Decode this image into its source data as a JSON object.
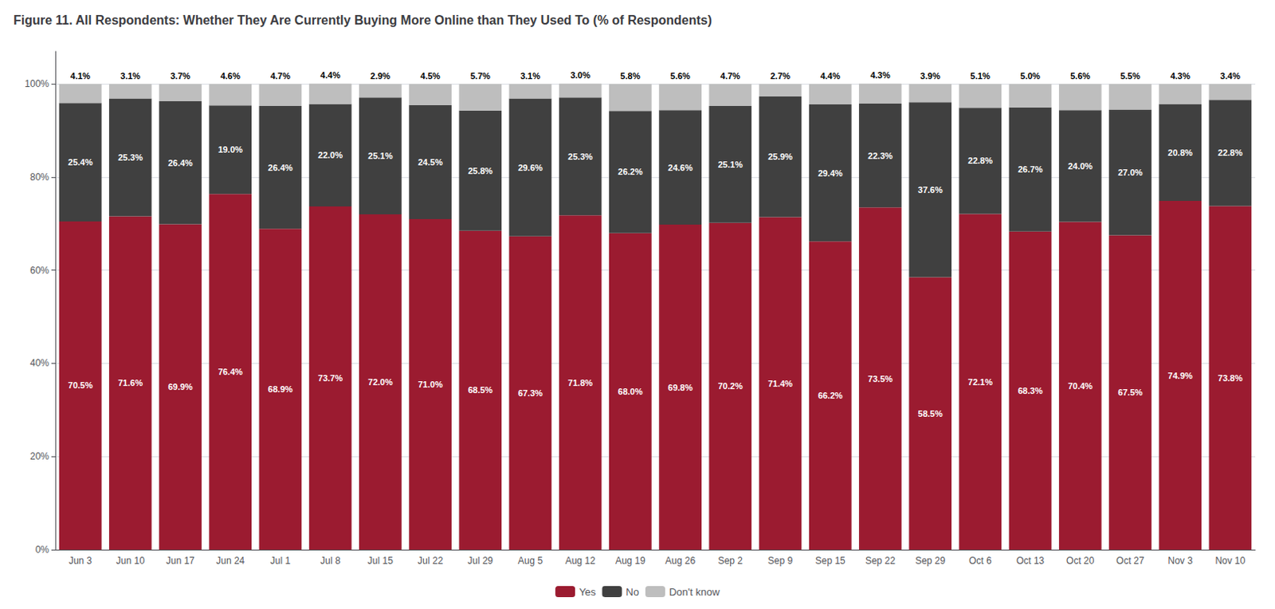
{
  "chart_data": {
    "type": "bar",
    "title": "Figure 11. All Respondents: Whether They Are Currently Buying More Online than They Used To (% of Respondents)",
    "categories": [
      "Jun 3",
      "Jun 10",
      "Jun 17",
      "Jun 24",
      "Jul 1",
      "Jul 8",
      "Jul 15",
      "Jul 22",
      "Jul 29",
      "Aug 5",
      "Aug 12",
      "Aug 19",
      "Aug 26",
      "Sep 2",
      "Sep 9",
      "Sep 15",
      "Sep 22",
      "Sep 29",
      "Oct 6",
      "Oct 13",
      "Oct 20",
      "Oct 27",
      "Nov 3",
      "Nov 10"
    ],
    "series": [
      {
        "name": "Yes",
        "color": "#9B1B30",
        "values": [
          70.5,
          71.6,
          69.9,
          76.4,
          68.9,
          73.7,
          72.0,
          71.0,
          68.5,
          67.3,
          71.8,
          68.0,
          69.8,
          70.2,
          71.4,
          66.2,
          73.5,
          58.5,
          72.1,
          68.3,
          70.4,
          67.5,
          74.9,
          73.8
        ],
        "value_labels": [
          "70.5%",
          "71.6%",
          "69.9%",
          "76.4%",
          "68.9%",
          "73.7%",
          "72.0%",
          "71.0%",
          "68.5%",
          "67.3%",
          "71.8%",
          "68.0%",
          "69.8%",
          "70.2%",
          "71.4%",
          "66.2%",
          "73.5%",
          "58.5%",
          "72.1%",
          "68.3%",
          "70.4%",
          "67.5%",
          "74.9%",
          "73.8%"
        ]
      },
      {
        "name": "No",
        "color": "#404040",
        "values": [
          25.4,
          25.3,
          26.4,
          19.0,
          26.4,
          22.0,
          25.1,
          24.5,
          25.8,
          29.6,
          25.3,
          26.2,
          24.6,
          25.1,
          25.9,
          29.4,
          22.3,
          37.6,
          22.8,
          26.7,
          24.0,
          27.0,
          20.8,
          22.8
        ],
        "value_labels": [
          "25.4%",
          "25.3%",
          "26.4%",
          "19.0%",
          "26.4%",
          "22.0%",
          "25.1%",
          "24.5%",
          "25.8%",
          "29.6%",
          "25.3%",
          "26.2%",
          "24.6%",
          "25.1%",
          "25.9%",
          "29.4%",
          "22.3%",
          "37.6%",
          "22.8%",
          "26.7%",
          "24.0%",
          "27.0%",
          "20.8%",
          "22.8%"
        ]
      },
      {
        "name": "Don't know",
        "color": "#BEBEBE",
        "values": [
          4.1,
          3.1,
          3.7,
          4.6,
          4.7,
          4.4,
          2.9,
          4.5,
          5.7,
          3.1,
          3.0,
          5.8,
          5.6,
          4.7,
          2.7,
          4.4,
          4.3,
          3.9,
          5.1,
          5.0,
          5.6,
          5.5,
          4.3,
          3.4
        ],
        "value_labels": [
          "4.1%",
          "3.1%",
          "3.7%",
          "4.6%",
          "4.7%",
          "4.4%",
          "2.9%",
          "4.5%",
          "5.7%",
          "3.1%",
          "3.0%",
          "5.8%",
          "5.6%",
          "4.7%",
          "2.7%",
          "4.4%",
          "4.3%",
          "3.9%",
          "5.1%",
          "5.0%",
          "5.6%",
          "5.5%",
          "4.3%",
          "3.4%"
        ]
      }
    ],
    "stacked": true,
    "data_labels": true,
    "ylim": [
      0,
      107
    ],
    "yticks": [
      {
        "value": 0,
        "label": "0%"
      },
      {
        "value": 20,
        "label": "20%"
      },
      {
        "value": 40,
        "label": "40%"
      },
      {
        "value": 60,
        "label": "60%"
      },
      {
        "value": 80,
        "label": "80%"
      },
      {
        "value": 100,
        "label": "100%"
      }
    ],
    "grid": true,
    "legend": "bottom"
  }
}
